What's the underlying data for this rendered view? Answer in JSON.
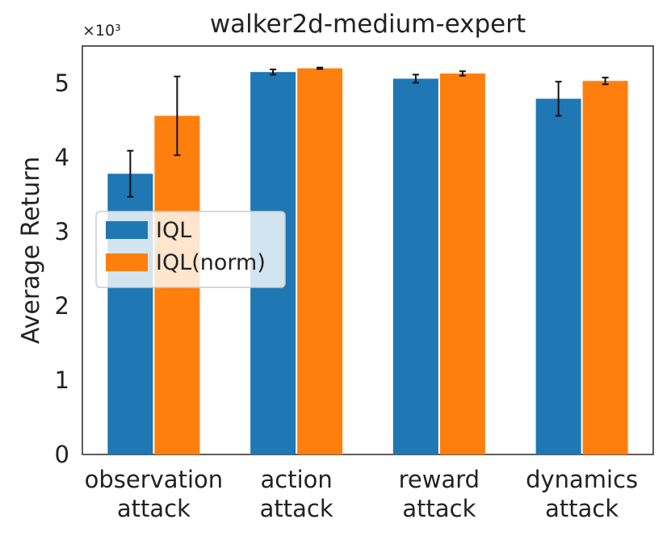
{
  "chart_data": {
    "type": "bar",
    "title": "walker2d-medium-expert",
    "xlabel": "",
    "ylabel": "Average Return",
    "y_multiplier_label": "×10³",
    "y_scale": 1000,
    "ylim": [
      0,
      5500
    ],
    "yticks": [
      0,
      1000,
      2000,
      3000,
      4000,
      5000
    ],
    "ytick_labels": [
      "0",
      "1",
      "2",
      "3",
      "4",
      "5"
    ],
    "categories": [
      [
        "observation",
        "attack"
      ],
      [
        "action",
        "attack"
      ],
      [
        "reward",
        "attack"
      ],
      [
        "dynamics",
        "attack"
      ]
    ],
    "series": [
      {
        "name": "IQL",
        "color": "#1f77b4",
        "values": [
          3780,
          5150,
          5060,
          4790
        ],
        "errors": [
          310,
          35,
          55,
          230
        ]
      },
      {
        "name": "IQL(norm)",
        "color": "#ff7f0e",
        "values": [
          4560,
          5200,
          5130,
          5030
        ],
        "errors": [
          530,
          10,
          30,
          45
        ]
      }
    ],
    "legend": {
      "placement": "center-left"
    },
    "grid": false
  }
}
